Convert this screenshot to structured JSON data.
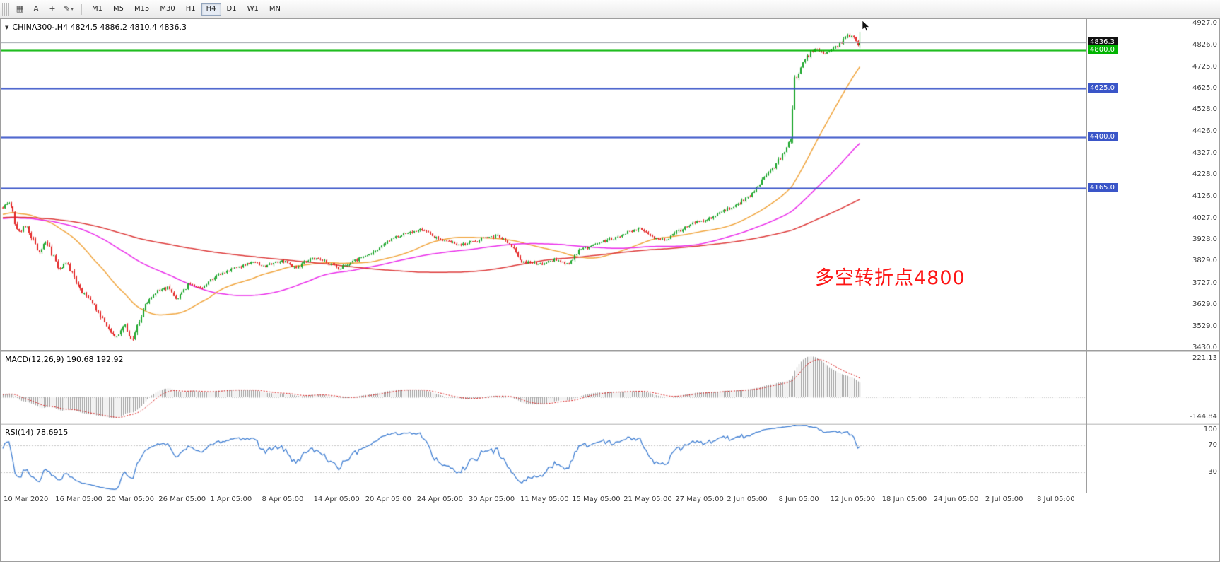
{
  "toolbar": {
    "tools": [
      {
        "name": "chart-grid",
        "glyph": "▦"
      },
      {
        "name": "text-tool",
        "glyph": "A"
      },
      {
        "name": "crosshair-tool",
        "glyph": "+"
      },
      {
        "name": "draw-tool",
        "glyph": "✎",
        "chevron": "▾"
      }
    ],
    "timeframes": [
      "M1",
      "M5",
      "M15",
      "M30",
      "H1",
      "H4",
      "D1",
      "W1",
      "MN"
    ],
    "active_timeframe": "H4"
  },
  "window": {
    "title": "CHINA300-,H4 4824.5 4886.2 4810.4 4836.3",
    "title_marker": "▼"
  },
  "chart_data": {
    "type": "candlestick",
    "symbol": "CHINA300-",
    "period": "H4",
    "ohlc_current": {
      "open": 4824.5,
      "high": 4886.2,
      "low": 4810.4,
      "close": 4836.3
    },
    "annotation": {
      "text": "多空转折点4800",
      "color": "#fe1414"
    },
    "levels": [
      {
        "price": 4836.3,
        "color": "#9aa0a8",
        "width": 1,
        "badge_bg": "#101010",
        "label": "4836.3"
      },
      {
        "price": 4800.0,
        "color": "#00b400",
        "width": 2,
        "badge_bg": "#00b400",
        "label": "4800.0"
      },
      {
        "price": 4625.0,
        "color": "#3a55c8",
        "width": 2,
        "badge_bg": "#3a55c8",
        "label": "4625.0"
      },
      {
        "price": 4400.0,
        "color": "#3a55c8",
        "width": 2,
        "badge_bg": "#3a55c8",
        "label": "4400.0"
      },
      {
        "price": 4165.0,
        "color": "#3a55c8",
        "width": 2,
        "badge_bg": "#3a55c8",
        "label": "4165.0"
      }
    ],
    "y_ticks": [
      "4927.0",
      "4826.0",
      "4725.0",
      "4625.0",
      "4528.0",
      "4426.0",
      "4327.0",
      "4228.0",
      "4126.0",
      "4027.0",
      "3928.0",
      "3829.0",
      "3727.0",
      "3629.0",
      "3529.0",
      "3430.0"
    ],
    "x_ticks": [
      "10 Mar 2020",
      "16 Mar 05:00",
      "20 Mar 05:00",
      "26 Mar 05:00",
      "1 Apr 05:00",
      "8 Apr 05:00",
      "14 Apr 05:00",
      "20 Apr 05:00",
      "24 Apr 05:00",
      "30 Apr 05:00",
      "11 May 05:00",
      "15 May 05:00",
      "21 May 05:00",
      "27 May 05:00",
      "2 Jun 05:00",
      "8 Jun 05:00",
      "12 Jun 05:00",
      "18 Jun 05:00",
      "24 Jun 05:00",
      "2 Jul 05:00",
      "8 Jul 05:00"
    ],
    "view": {
      "price_min": 3420,
      "price_max": 4945,
      "bar_spacing": 2.88,
      "left_pad": 3,
      "candle_count": 422,
      "warmup_bars": 220,
      "time_label_offset": 4,
      "time_label_spacing": 73.1
    },
    "colors": {
      "up": "#18a428",
      "down": "#e32222",
      "ma_fast": "#f0a43c",
      "ma_mid": "#ea2bea",
      "ma_slow": "#dd3939",
      "macd_hist": "#9b9b9b",
      "macd_signal": "#d41414",
      "rsi_line": "#3f7ed2",
      "level_dotted": "#c4c4c4"
    },
    "ma_periods": {
      "fast": 40,
      "mid": 90,
      "slow": 200
    },
    "warmup_anchors": [
      [
        -220,
        3985
      ],
      [
        -150,
        4055
      ],
      [
        -60,
        4000
      ],
      [
        -20,
        4040
      ]
    ],
    "price_path_anchors": [
      [
        0,
        4075
      ],
      [
        4,
        4100
      ],
      [
        8,
        3965
      ],
      [
        12,
        3995
      ],
      [
        18,
        3870
      ],
      [
        22,
        3920
      ],
      [
        28,
        3790
      ],
      [
        32,
        3820
      ],
      [
        38,
        3700
      ],
      [
        44,
        3640
      ],
      [
        50,
        3555
      ],
      [
        56,
        3470
      ],
      [
        60,
        3540
      ],
      [
        64,
        3455
      ],
      [
        70,
        3620
      ],
      [
        76,
        3690
      ],
      [
        82,
        3710
      ],
      [
        86,
        3645
      ],
      [
        92,
        3725
      ],
      [
        98,
        3705
      ],
      [
        106,
        3765
      ],
      [
        114,
        3795
      ],
      [
        122,
        3825
      ],
      [
        130,
        3805
      ],
      [
        138,
        3835
      ],
      [
        144,
        3795
      ],
      [
        152,
        3845
      ],
      [
        160,
        3825
      ],
      [
        166,
        3795
      ],
      [
        174,
        3835
      ],
      [
        182,
        3865
      ],
      [
        190,
        3925
      ],
      [
        198,
        3955
      ],
      [
        206,
        3975
      ],
      [
        212,
        3945
      ],
      [
        220,
        3915
      ],
      [
        228,
        3905
      ],
      [
        236,
        3935
      ],
      [
        244,
        3945
      ],
      [
        250,
        3905
      ],
      [
        256,
        3825
      ],
      [
        264,
        3815
      ],
      [
        272,
        3835
      ],
      [
        278,
        3815
      ],
      [
        284,
        3885
      ],
      [
        292,
        3905
      ],
      [
        300,
        3935
      ],
      [
        308,
        3965
      ],
      [
        314,
        3980
      ],
      [
        320,
        3935
      ],
      [
        326,
        3925
      ],
      [
        332,
        3965
      ],
      [
        340,
        4005
      ],
      [
        348,
        4025
      ],
      [
        354,
        4060
      ],
      [
        362,
        4095
      ],
      [
        368,
        4135
      ],
      [
        374,
        4205
      ],
      [
        380,
        4270
      ],
      [
        384,
        4330
      ],
      [
        387,
        4385
      ],
      [
        388,
        4400
      ],
      [
        389,
        4665
      ],
      [
        391,
        4690
      ],
      [
        394,
        4755
      ],
      [
        399,
        4805
      ],
      [
        405,
        4785
      ],
      [
        411,
        4825
      ],
      [
        416,
        4872
      ],
      [
        421,
        4836.3
      ]
    ],
    "indicators": {
      "macd": {
        "label": "MACD(12,26,9) 190.68 192.92",
        "params": [
          12,
          26,
          9
        ],
        "main": 190.68,
        "signal": 192.92,
        "axis_max": "221.13",
        "axis_min": "-144.84"
      },
      "rsi": {
        "label": "RSI(14) 78.6915",
        "period": 14,
        "value": 78.6915,
        "axis": [
          "100",
          "70",
          "30"
        ],
        "levels": [
          70,
          30
        ]
      }
    }
  }
}
